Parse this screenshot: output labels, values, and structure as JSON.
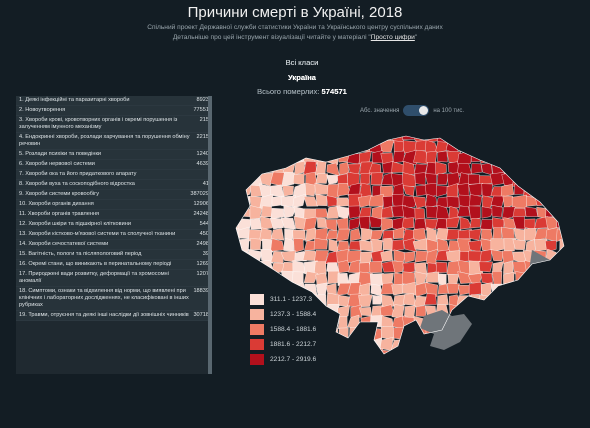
{
  "header": {
    "title": "Причини смерті в Україні, 2018",
    "subtitle1": "Спільний проект Державної служби статистики України та Українського центру суспільних даних",
    "subtitle2_prefix": "Детальніше про цей інструмент візуалізації читайте у матеріалі \"",
    "subtitle2_link": "Просто цифри",
    "subtitle2_suffix": "\""
  },
  "selection": {
    "classes": "Всі класи",
    "country": "Україна",
    "total_label": "Всього померлих:",
    "total_value": "574571"
  },
  "toggle": {
    "left_label": "Абс. значення",
    "right_label": "на 100 тис."
  },
  "causes": [
    {
      "label": "1. Деякі інфекційні та паразитарні хвороби",
      "value": "8923"
    },
    {
      "label": "2. Новоутворення",
      "value": "77551"
    },
    {
      "label": "3. Хвороби крові, кровотворних органів і окремі порушення із залученням імунного механізму",
      "value": "215"
    },
    {
      "label": "4. Ендокринні хвороби, розлади харчування та порушення обміну речовин",
      "value": "2215"
    },
    {
      "label": "5. Розлади психіки та поведінки",
      "value": "1240"
    },
    {
      "label": "6. Хвороби нервової системи",
      "value": "4639"
    },
    {
      "label": "7. Хвороби ока та його придаткового апарату",
      "value": ""
    },
    {
      "label": "8. Хвороби вуха та соскоподібного відростка",
      "value": "41"
    },
    {
      "label": "9. Хвороби системи кровообігу",
      "value": "387029"
    },
    {
      "label": "10. Хвороби органів дихання",
      "value": "12906"
    },
    {
      "label": "11. Хвороби органів травлення",
      "value": "24248"
    },
    {
      "label": "12. Хвороби шкіри та підшкірної клітковини",
      "value": "544"
    },
    {
      "label": "13. Хвороби кістково-м'язової системи та сполучної тканини",
      "value": "450"
    },
    {
      "label": "14. Хвороби сечостатевої системи",
      "value": "2498"
    },
    {
      "label": "15. Вагітність, пологи та післяпологовий період",
      "value": "39"
    },
    {
      "label": "16. Окремі стани, що виникають в перинатальному періоді",
      "value": "1269"
    },
    {
      "label": "17. Природжені вади розвитку, деформації та хромосомні аномалії",
      "value": "1207"
    },
    {
      "label": "18. Симптоми, ознаки та відхилення від норми, що виявлені при клінічних і лабораторних дослідженнях, не класифіковані в інших рубриках",
      "value": "18839"
    },
    {
      "label": "19. Травми, отруєння та деякі інші наслідки дії зовнішніх чинників",
      "value": "30718"
    }
  ],
  "legend": [
    {
      "label": "311.1 - 1237.3",
      "color": "#fbe0d8"
    },
    {
      "label": "1237.3 - 1588.4",
      "color": "#f7b39e"
    },
    {
      "label": "1588.4 - 1881.6",
      "color": "#ee7a64"
    },
    {
      "label": "1881.6 - 2212.7",
      "color": "#da3b35"
    },
    {
      "label": "2212.7 - 2919.6",
      "color": "#b2101c"
    }
  ],
  "colors": {
    "no_data": "#6f757a",
    "background": "#131d24"
  }
}
